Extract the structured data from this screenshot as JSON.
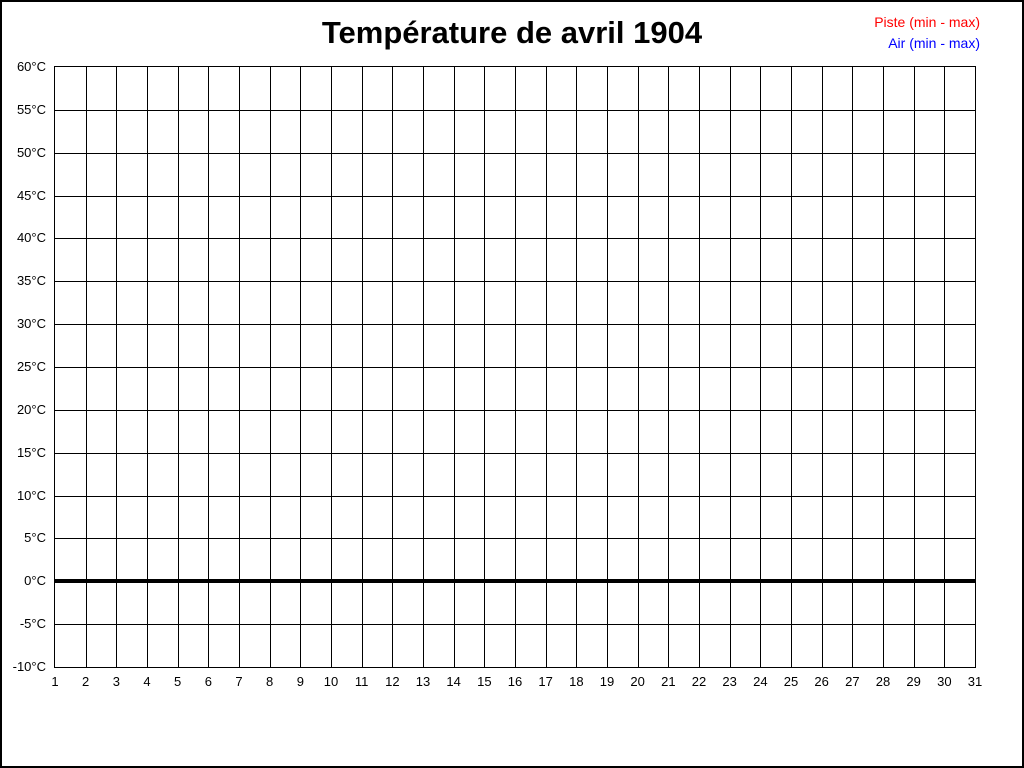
{
  "page": {
    "background": "#ffffff",
    "border_color": "#000000"
  },
  "title": "Température de avril 1904",
  "chart_data": {
    "type": "line",
    "title": "Température de avril 1904",
    "x_ticks": [
      1,
      2,
      3,
      4,
      5,
      6,
      7,
      8,
      9,
      10,
      11,
      12,
      13,
      14,
      15,
      16,
      17,
      18,
      19,
      20,
      21,
      22,
      23,
      24,
      25,
      26,
      27,
      28,
      29,
      30,
      31
    ],
    "y_range": [
      -10,
      60
    ],
    "y_step": 5,
    "y_unit": "°C",
    "y_tick_labels": [
      "60°C",
      "55°C",
      "50°C",
      "45°C",
      "40°C",
      "35°C",
      "30°C",
      "25°C",
      "20°C",
      "15°C",
      "10°C",
      "5°C",
      "0°C",
      "-5°C",
      "-10°C"
    ],
    "grid": true,
    "grid_color": "#000000",
    "zero_line_value": 0,
    "legend_position": "top-right",
    "series": [
      {
        "name": "Piste (min - max)",
        "color": "#ff0000",
        "values": []
      },
      {
        "name": "Air (min - max)",
        "color": "#0000ff",
        "values": []
      }
    ]
  }
}
